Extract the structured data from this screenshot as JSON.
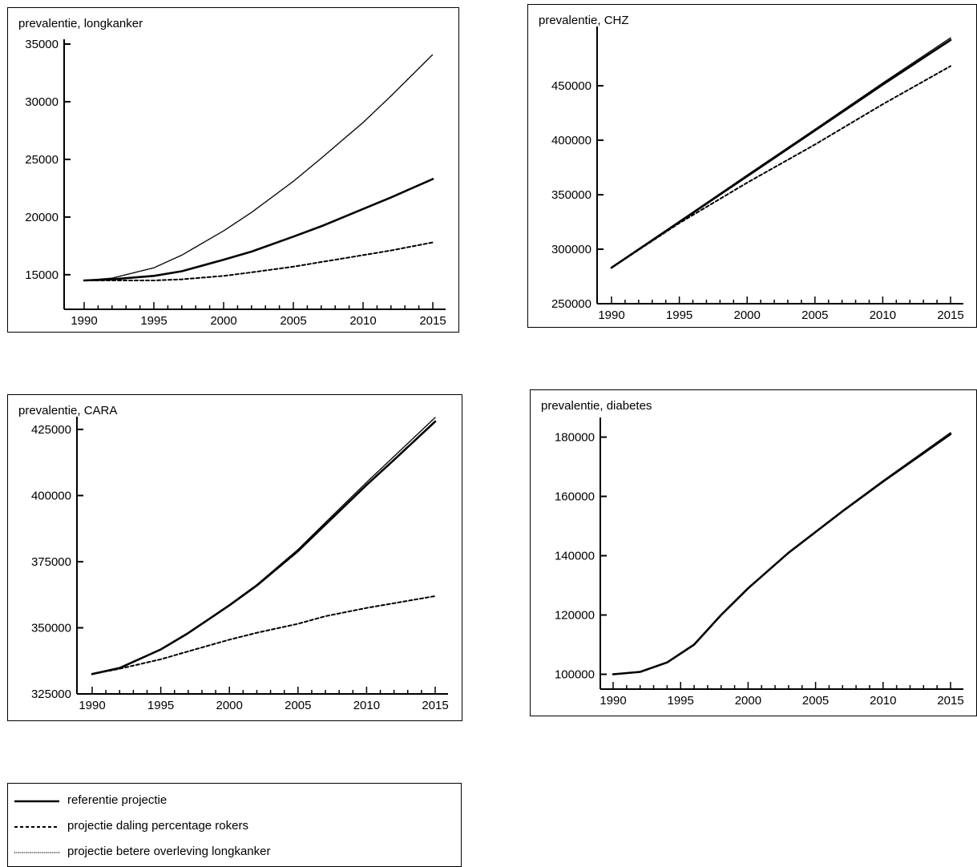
{
  "chart_data": [
    {
      "type": "line",
      "title": "prevalentie, longkanker",
      "xlim": [
        1990,
        2015
      ],
      "ylim": [
        12000,
        35000
      ],
      "x_ticks": [
        1990,
        1995,
        2000,
        2005,
        2010,
        2015
      ],
      "y_ticks": [
        15000,
        20000,
        25000,
        30000,
        35000
      ],
      "series": [
        {
          "name": "referentie projectie",
          "style": "solid",
          "x": [
            1990,
            1992,
            1995,
            1997,
            2000,
            2002,
            2005,
            2007,
            2010,
            2012,
            2015
          ],
          "y": [
            14500,
            14600,
            14900,
            15300,
            16300,
            17000,
            18300,
            19200,
            20700,
            21700,
            23300
          ]
        },
        {
          "name": "projectie daling percentage rokers",
          "style": "dashed",
          "x": [
            1990,
            1992,
            1995,
            1997,
            2000,
            2002,
            2005,
            2007,
            2010,
            2012,
            2015
          ],
          "y": [
            14500,
            14500,
            14500,
            14600,
            14900,
            15200,
            15700,
            16100,
            16700,
            17100,
            17800
          ]
        },
        {
          "name": "projectie betere overleving longkanker",
          "style": "dotted",
          "x": [
            1990,
            1992,
            1995,
            1997,
            2000,
            2002,
            2005,
            2007,
            2010,
            2012,
            2015
          ],
          "y": [
            14500,
            14700,
            15600,
            16700,
            18800,
            20400,
            23100,
            25100,
            28200,
            30500,
            34100
          ]
        }
      ]
    },
    {
      "type": "line",
      "title": "prevalentie, CHZ",
      "xlim": [
        1990,
        2015
      ],
      "ylim": [
        250000,
        500000
      ],
      "x_ticks": [
        1990,
        1995,
        2000,
        2005,
        2010,
        2015
      ],
      "y_ticks": [
        250000,
        300000,
        350000,
        400000,
        450000
      ],
      "series": [
        {
          "name": "referentie projectie",
          "style": "solid",
          "x": [
            1990,
            1995,
            2000,
            2005,
            2010,
            2015
          ],
          "y": [
            283000,
            325000,
            367000,
            409000,
            451000,
            492000
          ]
        },
        {
          "name": "projectie daling percentage rokers",
          "style": "dashed",
          "x": [
            1990,
            1995,
            2000,
            2005,
            2010,
            2015
          ],
          "y": [
            283000,
            324000,
            361000,
            396000,
            433000,
            468000
          ]
        },
        {
          "name": "projectie betere overleving longkanker",
          "style": "dotted",
          "x": [
            1990,
            1995,
            2000,
            2005,
            2010,
            2015
          ],
          "y": [
            283000,
            325500,
            368000,
            410000,
            452500,
            494000
          ]
        }
      ]
    },
    {
      "type": "line",
      "title": "prevalentie, CARA",
      "xlim": [
        1990,
        2015
      ],
      "ylim": [
        325000,
        428000
      ],
      "x_ticks": [
        1990,
        1995,
        2000,
        2005,
        2010,
        2015
      ],
      "y_ticks": [
        325000,
        350000,
        375000,
        400000,
        425000
      ],
      "series": [
        {
          "name": "referentie projectie",
          "style": "solid",
          "x": [
            1990,
            1992,
            1995,
            1997,
            2000,
            2002,
            2005,
            2007,
            2010,
            2012,
            2015
          ],
          "y": [
            332500,
            334800,
            341800,
            348000,
            358500,
            366000,
            379000,
            389000,
            404000,
            413500,
            428000
          ]
        },
        {
          "name": "projectie daling percentage rokers",
          "style": "dashed",
          "x": [
            1990,
            1992,
            1995,
            1997,
            2000,
            2002,
            2005,
            2007,
            2010,
            2012,
            2015
          ],
          "y": [
            332500,
            334500,
            338100,
            341100,
            345500,
            348100,
            351500,
            354400,
            357500,
            359300,
            362000
          ]
        },
        {
          "name": "projectie betere overleving longkanker",
          "style": "dotted",
          "x": [
            1990,
            1992,
            1995,
            1997,
            2000,
            2002,
            2005,
            2007,
            2010,
            2012,
            2015
          ],
          "y": [
            332500,
            334800,
            341800,
            348000,
            358700,
            366300,
            379600,
            389800,
            405000,
            414800,
            429500
          ]
        }
      ]
    },
    {
      "type": "line",
      "title": "prevalentie, diabetes",
      "xlim": [
        1990,
        2015
      ],
      "ylim": [
        95000,
        185000
      ],
      "x_ticks": [
        1990,
        1995,
        2000,
        2005,
        2010,
        2015
      ],
      "y_ticks": [
        100000,
        120000,
        140000,
        160000,
        180000
      ],
      "series": [
        {
          "name": "referentie projectie",
          "style": "solid",
          "x": [
            1990,
            1992,
            1994,
            1996,
            1998,
            2000,
            2003,
            2007,
            2010,
            2015
          ],
          "y": [
            100000,
            100800,
            104000,
            110000,
            120000,
            129000,
            141000,
            155000,
            165000,
            181000
          ]
        },
        {
          "name": "projectie daling percentage rokers",
          "style": "dashed",
          "x": [
            1990,
            1992,
            1994,
            1996,
            1998,
            2000,
            2003,
            2007,
            2010,
            2015
          ],
          "y": [
            100000,
            100800,
            104000,
            110000,
            120000,
            129000,
            141000,
            155000,
            165000,
            181000
          ]
        },
        {
          "name": "projectie betere overleving longkanker",
          "style": "dotted",
          "x": [
            1990,
            1992,
            1994,
            1996,
            1998,
            2000,
            2003,
            2007,
            2010,
            2015
          ],
          "y": [
            100000,
            100800,
            104000,
            110000,
            120000,
            129000,
            141000,
            155200,
            165300,
            181500
          ]
        }
      ]
    }
  ],
  "legend": {
    "items": [
      {
        "label": "referentie projectie",
        "style": "solid"
      },
      {
        "label": "projectie daling percentage rokers",
        "style": "dashed"
      },
      {
        "label": "projectie betere overleving longkanker",
        "style": "dotted"
      }
    ]
  }
}
